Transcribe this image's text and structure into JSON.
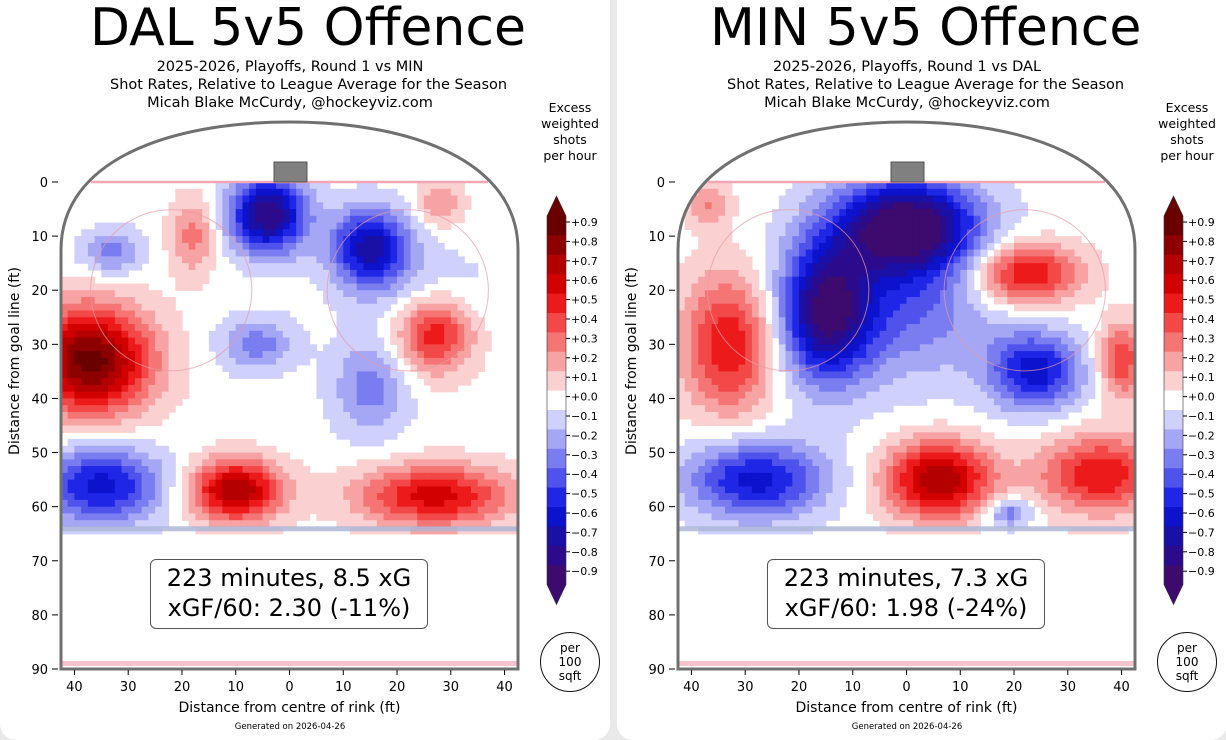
{
  "colorbar": {
    "title": [
      "Excess",
      "weighted",
      "shots",
      "per hour"
    ],
    "levels": [
      "+0.9",
      "+0.8",
      "+0.7",
      "+0.6",
      "+0.5",
      "+0.4",
      "+0.3",
      "+0.2",
      "+0.1",
      "+0.0",
      "−0.1",
      "−0.2",
      "−0.3",
      "−0.4",
      "−0.5",
      "−0.6",
      "−0.7",
      "−0.8",
      "−0.9"
    ],
    "colors": [
      "#6b0000",
      "#8e0000",
      "#b40000",
      "#d20000",
      "#ec1a1a",
      "#f24848",
      "#f57575",
      "#f8a3a3",
      "#fbd0d0",
      "#ffffff",
      "#cfd0fb",
      "#a5a7f5",
      "#7a7df0",
      "#4f53eb",
      "#1f26e6",
      "#0d12cc",
      "#1a10a6",
      "#2c0a8c",
      "#3d0a6e"
    ]
  },
  "per_area": [
    "per",
    "100",
    "sqft"
  ],
  "chart_data": [
    {
      "type": "heatmap",
      "title": "DAL 5v5 Offence",
      "subtitle": [
        "2025-2026, Playoffs, Round 1 vs MIN",
        "Shot Rates, Relative to League Average for the Season",
        "Micah Blake McCurdy, @hockeyviz.com"
      ],
      "xlabel": "Distance from centre of rink (ft)",
      "ylabel": "Distance from goal line (ft)",
      "x_ticks": [
        "40",
        "30",
        "20",
        "10",
        "0",
        "10",
        "20",
        "30",
        "40"
      ],
      "y_ticks": [
        "0",
        "10",
        "20",
        "30",
        "40",
        "50",
        "60",
        "70",
        "80",
        "90"
      ],
      "xlim": [
        -42.5,
        42.5
      ],
      "ylim": [
        0,
        90
      ],
      "stats": {
        "line1": "223 minutes, 8.5 xG",
        "line2": "xGF/60: 2.30 (-11%)"
      },
      "generated": "Generated on 2026-04-26",
      "blobs": [
        {
          "x": -37,
          "y": 33,
          "sx": 8,
          "sy": 7,
          "v": 0.9
        },
        {
          "x": -18,
          "y": 10,
          "sx": 3,
          "sy": 5,
          "v": 0.3
        },
        {
          "x": -6,
          "y": 30,
          "sx": 5,
          "sy": 3.5,
          "v": -0.3
        },
        {
          "x": -33,
          "y": 13,
          "sx": 4,
          "sy": 3,
          "v": -0.3
        },
        {
          "x": -4,
          "y": 6,
          "sx": 5,
          "sy": 5,
          "v": -0.85
        },
        {
          "x": 15,
          "y": 12,
          "sx": 5,
          "sy": 5,
          "v": -0.7
        },
        {
          "x": 27,
          "y": 28,
          "sx": 5,
          "sy": 5,
          "v": 0.55
        },
        {
          "x": 28,
          "y": 4,
          "sx": 3,
          "sy": 3,
          "v": 0.25
        },
        {
          "x": 15,
          "y": 38,
          "sx": 5,
          "sy": 6,
          "v": -0.3
        },
        {
          "x": -35,
          "y": 56,
          "sx": 8,
          "sy": 5,
          "v": -0.6
        },
        {
          "x": -10,
          "y": 57,
          "sx": 6,
          "sy": 4,
          "v": 0.75
        },
        {
          "x": 27,
          "y": 58,
          "sx": 10,
          "sy": 4,
          "v": 0.6
        },
        {
          "x": 25,
          "y": 20,
          "sx": 10,
          "sy": 6,
          "v": -0.12
        }
      ]
    },
    {
      "type": "heatmap",
      "title": "MIN 5v5 Offence",
      "subtitle": [
        "2025-2026, Playoffs, Round 1 vs DAL",
        "Shot Rates, Relative to League Average for the Season",
        "Micah Blake McCurdy, @hockeyviz.com"
      ],
      "xlabel": "Distance from centre of rink (ft)",
      "ylabel": "Distance from goal line (ft)",
      "x_ticks": [
        "40",
        "30",
        "20",
        "10",
        "0",
        "10",
        "20",
        "30",
        "40"
      ],
      "y_ticks": [
        "0",
        "10",
        "20",
        "30",
        "40",
        "50",
        "60",
        "70",
        "80",
        "90"
      ],
      "xlim": [
        -42.5,
        42.5
      ],
      "ylim": [
        0,
        90
      ],
      "stats": {
        "line1": "223 minutes, 7.3 xG",
        "line2": "xGF/60: 1.98 (-24%)"
      },
      "generated": "Generated on 2026-04-26",
      "blobs": [
        {
          "x": 0,
          "y": 8,
          "sx": 9,
          "sy": 6,
          "v": -0.95
        },
        {
          "x": -15,
          "y": 24,
          "sx": 6,
          "sy": 9,
          "v": -0.8
        },
        {
          "x": 0,
          "y": 22,
          "sx": 12,
          "sy": 10,
          "v": -0.35
        },
        {
          "x": -33,
          "y": 30,
          "sx": 6,
          "sy": 9,
          "v": 0.55
        },
        {
          "x": -37,
          "y": 4,
          "sx": 3,
          "sy": 3,
          "v": 0.25
        },
        {
          "x": 22,
          "y": 17,
          "sx": 7,
          "sy": 4,
          "v": 0.6
        },
        {
          "x": 24,
          "y": 35,
          "sx": 6,
          "sy": 5,
          "v": -0.6
        },
        {
          "x": 40,
          "y": 33,
          "sx": 3,
          "sy": 5,
          "v": 0.45
        },
        {
          "x": -28,
          "y": 55,
          "sx": 9,
          "sy": 5,
          "v": -0.6
        },
        {
          "x": 6,
          "y": 55,
          "sx": 7,
          "sy": 5,
          "v": 0.75
        },
        {
          "x": 36,
          "y": 54,
          "sx": 8,
          "sy": 5,
          "v": 0.55
        },
        {
          "x": 19,
          "y": 61,
          "sx": 3,
          "sy": 2,
          "v": -0.35
        }
      ]
    }
  ]
}
